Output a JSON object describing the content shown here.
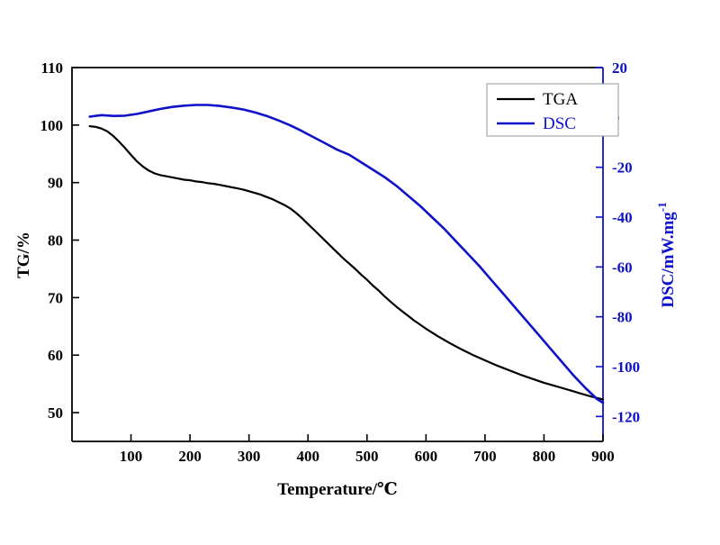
{
  "chart_data": {
    "type": "line",
    "title": "",
    "xlabel": "Temperature/℃",
    "ylabel_left": "TG/%",
    "ylabel_right": "DSC/mW.mg",
    "ylabel_right_exp": "-1",
    "x_range": [
      0,
      900
    ],
    "x_ticks": [
      100,
      200,
      300,
      400,
      500,
      600,
      700,
      800,
      900
    ],
    "y_left_range": [
      45,
      110
    ],
    "y_left_ticks": [
      50,
      60,
      70,
      80,
      90,
      100,
      110
    ],
    "y_right_range": [
      -130,
      20
    ],
    "y_right_ticks": [
      20,
      0,
      -20,
      -40,
      -60,
      -80,
      -100,
      -120
    ],
    "grid": false,
    "legend_position": "top-right",
    "colors": {
      "tga": "#000000",
      "dsc": "#0f12c8",
      "axis": "#000000"
    },
    "legend": [
      {
        "label": "TGA",
        "color": "#000000"
      },
      {
        "label": "DSC",
        "color": "#0f12c8"
      }
    ],
    "series": [
      {
        "name": "TGA",
        "axis": "left",
        "color": "#000000",
        "points": [
          [
            30,
            99.8
          ],
          [
            40,
            99.7
          ],
          [
            50,
            99.4
          ],
          [
            60,
            98.9
          ],
          [
            70,
            98.1
          ],
          [
            80,
            97.1
          ],
          [
            90,
            96.0
          ],
          [
            100,
            94.8
          ],
          [
            110,
            93.7
          ],
          [
            120,
            92.8
          ],
          [
            130,
            92.1
          ],
          [
            140,
            91.6
          ],
          [
            150,
            91.3
          ],
          [
            160,
            91.1
          ],
          [
            170,
            90.9
          ],
          [
            180,
            90.7
          ],
          [
            190,
            90.5
          ],
          [
            200,
            90.4
          ],
          [
            210,
            90.2
          ],
          [
            220,
            90.1
          ],
          [
            230,
            89.9
          ],
          [
            240,
            89.8
          ],
          [
            250,
            89.6
          ],
          [
            260,
            89.4
          ],
          [
            270,
            89.2
          ],
          [
            280,
            89.0
          ],
          [
            290,
            88.8
          ],
          [
            300,
            88.5
          ],
          [
            310,
            88.2
          ],
          [
            320,
            87.9
          ],
          [
            330,
            87.5
          ],
          [
            340,
            87.1
          ],
          [
            350,
            86.6
          ],
          [
            360,
            86.1
          ],
          [
            370,
            85.5
          ],
          [
            380,
            84.7
          ],
          [
            390,
            83.8
          ],
          [
            400,
            82.8
          ],
          [
            410,
            81.8
          ],
          [
            420,
            80.8
          ],
          [
            430,
            79.8
          ],
          [
            440,
            78.8
          ],
          [
            450,
            77.8
          ],
          [
            460,
            76.8
          ],
          [
            470,
            75.9
          ],
          [
            480,
            75.0
          ],
          [
            490,
            74.0
          ],
          [
            500,
            73.1
          ],
          [
            510,
            72.1
          ],
          [
            520,
            71.2
          ],
          [
            530,
            70.2
          ],
          [
            540,
            69.3
          ],
          [
            550,
            68.4
          ],
          [
            560,
            67.6
          ],
          [
            570,
            66.8
          ],
          [
            580,
            66.0
          ],
          [
            590,
            65.3
          ],
          [
            600,
            64.6
          ],
          [
            620,
            63.3
          ],
          [
            640,
            62.1
          ],
          [
            660,
            61.0
          ],
          [
            680,
            60.0
          ],
          [
            700,
            59.1
          ],
          [
            720,
            58.2
          ],
          [
            740,
            57.4
          ],
          [
            760,
            56.6
          ],
          [
            780,
            55.9
          ],
          [
            800,
            55.2
          ],
          [
            820,
            54.6
          ],
          [
            840,
            54.0
          ],
          [
            860,
            53.4
          ],
          [
            880,
            52.8
          ],
          [
            900,
            52.3
          ]
        ]
      },
      {
        "name": "DSC",
        "axis": "right",
        "color": "#0f12c8",
        "points": [
          [
            30,
            0.3
          ],
          [
            50,
            0.9
          ],
          [
            70,
            0.6
          ],
          [
            90,
            0.7
          ],
          [
            110,
            1.4
          ],
          [
            130,
            2.4
          ],
          [
            150,
            3.4
          ],
          [
            170,
            4.2
          ],
          [
            190,
            4.7
          ],
          [
            210,
            5.0
          ],
          [
            230,
            5.0
          ],
          [
            250,
            4.6
          ],
          [
            270,
            4.0
          ],
          [
            290,
            3.2
          ],
          [
            310,
            2.0
          ],
          [
            330,
            0.6
          ],
          [
            350,
            -1.2
          ],
          [
            370,
            -3.2
          ],
          [
            390,
            -5.5
          ],
          [
            410,
            -8.0
          ],
          [
            430,
            -10.5
          ],
          [
            450,
            -13.0
          ],
          [
            470,
            -15.0
          ],
          [
            490,
            -18.0
          ],
          [
            510,
            -21.0
          ],
          [
            530,
            -24.0
          ],
          [
            550,
            -27.5
          ],
          [
            570,
            -31.5
          ],
          [
            590,
            -35.5
          ],
          [
            610,
            -40.0
          ],
          [
            630,
            -44.5
          ],
          [
            650,
            -49.5
          ],
          [
            670,
            -54.5
          ],
          [
            690,
            -59.5
          ],
          [
            710,
            -65.0
          ],
          [
            730,
            -70.5
          ],
          [
            750,
            -76.0
          ],
          [
            770,
            -81.5
          ],
          [
            790,
            -87.0
          ],
          [
            810,
            -92.5
          ],
          [
            830,
            -98.0
          ],
          [
            850,
            -103.5
          ],
          [
            870,
            -108.5
          ],
          [
            890,
            -113.0
          ],
          [
            900,
            -114.5
          ]
        ]
      }
    ]
  }
}
